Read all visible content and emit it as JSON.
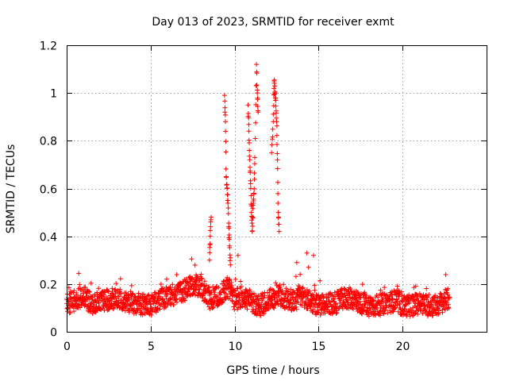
{
  "chart_data": {
    "type": "scatter",
    "title": "Day 013 of 2023, SRMTID for receiver exmt",
    "xlabel": "GPS time / hours",
    "ylabel": "SRMTID / TECUs",
    "xlim": [
      0,
      25
    ],
    "ylim": [
      0,
      1.2
    ],
    "xticks": [
      0,
      5,
      10,
      15,
      20
    ],
    "xtick_labels": [
      "0",
      "5",
      "10",
      "15",
      "20"
    ],
    "yticks": [
      0,
      0.2,
      0.4,
      0.6,
      0.8,
      1.0,
      1.2
    ],
    "ytick_labels": [
      "0",
      "0.2",
      "0.4",
      "0.6",
      "0.8",
      "1",
      "1.2"
    ],
    "grid": true,
    "marker": "+",
    "color": "#ff0000",
    "series": [
      {
        "name": "SRMTID",
        "baseline": [
          [
            0.0,
            0.12
          ],
          [
            0.5,
            0.13
          ],
          [
            1.0,
            0.15
          ],
          [
            1.5,
            0.11
          ],
          [
            2.0,
            0.13
          ],
          [
            3.0,
            0.14
          ],
          [
            4.0,
            0.12
          ],
          [
            5.0,
            0.11
          ],
          [
            5.5,
            0.13
          ],
          [
            6.0,
            0.15
          ],
          [
            6.5,
            0.16
          ],
          [
            7.0,
            0.17
          ],
          [
            7.5,
            0.2
          ],
          [
            8.0,
            0.19
          ],
          [
            8.5,
            0.14
          ],
          [
            9.0,
            0.15
          ],
          [
            9.3,
            0.17
          ],
          [
            9.7,
            0.18
          ],
          [
            10.0,
            0.13
          ],
          [
            10.5,
            0.15
          ],
          [
            11.0,
            0.12
          ],
          [
            11.5,
            0.11
          ],
          [
            12.0,
            0.13
          ],
          [
            12.5,
            0.15
          ],
          [
            13.0,
            0.14
          ],
          [
            13.5,
            0.13
          ],
          [
            14.0,
            0.15
          ],
          [
            14.5,
            0.13
          ],
          [
            15.0,
            0.11
          ],
          [
            15.5,
            0.12
          ],
          [
            16.0,
            0.12
          ],
          [
            16.5,
            0.14
          ],
          [
            17.0,
            0.14
          ],
          [
            17.5,
            0.12
          ],
          [
            18.0,
            0.11
          ],
          [
            18.5,
            0.11
          ],
          [
            19.0,
            0.12
          ],
          [
            19.5,
            0.13
          ],
          [
            20.0,
            0.11
          ],
          [
            20.5,
            0.11
          ],
          [
            21.0,
            0.12
          ],
          [
            21.5,
            0.11
          ],
          [
            22.0,
            0.11
          ],
          [
            22.5,
            0.13
          ],
          [
            22.8,
            0.14
          ]
        ],
        "spikes": [
          [
            8.5,
            0.3
          ],
          [
            8.55,
            0.4
          ],
          [
            8.6,
            0.48
          ],
          [
            9.4,
            0.99
          ],
          [
            9.45,
            0.88
          ],
          [
            9.5,
            0.65
          ],
          [
            9.55,
            0.6
          ],
          [
            9.6,
            0.55
          ],
          [
            9.65,
            0.44
          ],
          [
            9.7,
            0.36
          ],
          [
            9.75,
            0.28
          ],
          [
            10.05,
            0.22
          ],
          [
            10.2,
            0.32
          ],
          [
            10.8,
            0.95
          ],
          [
            10.85,
            0.84
          ],
          [
            10.9,
            0.72
          ],
          [
            10.95,
            0.62
          ],
          [
            11.0,
            0.5
          ],
          [
            11.05,
            0.42
          ],
          [
            11.1,
            0.53
          ],
          [
            11.15,
            0.58
          ],
          [
            11.2,
            0.73
          ],
          [
            11.3,
            1.12
          ],
          [
            11.35,
            1.0
          ],
          [
            11.4,
            0.92
          ],
          [
            12.2,
            0.75
          ],
          [
            12.3,
            0.88
          ],
          [
            12.35,
            1.05
          ],
          [
            12.4,
            1.0
          ],
          [
            12.45,
            0.97
          ],
          [
            12.5,
            0.88
          ],
          [
            12.55,
            0.72
          ],
          [
            12.6,
            0.5
          ],
          [
            12.65,
            0.42
          ],
          [
            14.3,
            0.33
          ],
          [
            14.7,
            0.32
          ],
          [
            14.4,
            0.27
          ],
          [
            13.7,
            0.29
          ],
          [
            13.9,
            0.24
          ]
        ]
      }
    ]
  }
}
